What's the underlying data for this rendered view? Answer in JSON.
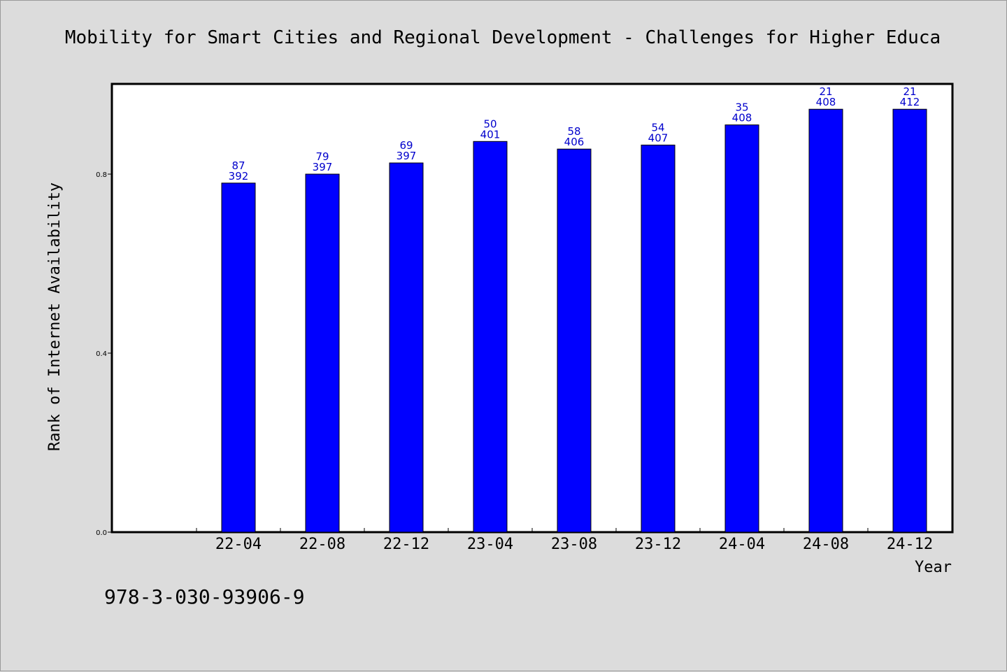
{
  "chart_data": {
    "type": "bar",
    "title": "Mobility for Smart Cities and Regional Development - Challenges for Higher Educa",
    "xlabel": "Year",
    "ylabel": "Rank of Internet Availability",
    "categories": [
      "22-04",
      "22-08",
      "22-12",
      "23-04",
      "23-08",
      "23-12",
      "24-04",
      "24-08",
      "24-12"
    ],
    "series": [
      {
        "values": [
          0.78,
          0.8,
          0.825,
          0.873,
          0.856,
          0.865,
          0.91,
          0.945,
          0.945
        ],
        "labels_top": [
          "87",
          "79",
          "69",
          "50",
          "58",
          "54",
          "35",
          "21",
          "21"
        ],
        "labels_bottom": [
          "392",
          "397",
          "397",
          "401",
          "406",
          "407",
          "408",
          "408",
          "412"
        ],
        "color": "#0000ff"
      }
    ],
    "ylim": [
      0,
      1.0
    ],
    "yticks": [
      0.0,
      0.4,
      0.8
    ],
    "ytick_labels": [
      "0.0",
      "0.4",
      "0.8"
    ],
    "grid": false,
    "background": "#dcdcdc",
    "plot_background": "#ffffff",
    "label_color": "#0000cc"
  },
  "footer": {
    "isbn": "978-3-030-93906-9"
  }
}
